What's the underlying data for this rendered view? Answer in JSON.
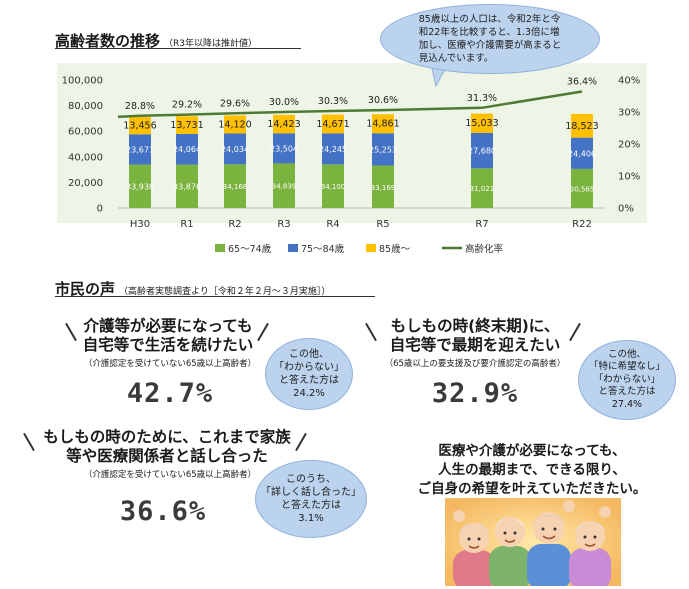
{
  "section1": {
    "title": "高齢者数の推移",
    "subtitle": "（R3年以降は推計値）"
  },
  "top_bubble": {
    "line1": "85歳以上の人口は、令和2年と令",
    "line2": "和22年を比較すると、1.3倍に増",
    "line3": "加し、医療や介護需要が高まると",
    "line4": "見込んでいます。"
  },
  "chart_data": {
    "type": "bar",
    "stacked": true,
    "categories": [
      "H30",
      "R1",
      "R2",
      "R3",
      "R4",
      "R5",
      "R7",
      "R22"
    ],
    "series": [
      {
        "name": "65～74歳",
        "color": "#7ab33e",
        "values": [
          33938,
          33876,
          34168,
          34839,
          34100,
          33169,
          31021,
          30565
        ]
      },
      {
        "name": "75～84歳",
        "color": "#4472c4",
        "values": [
          23671,
          24064,
          24034,
          23504,
          24245,
          25253,
          27680,
          24406
        ]
      },
      {
        "name": "85歳～",
        "color": "#ffc000",
        "values": [
          13456,
          13731,
          14120,
          14423,
          14671,
          14861,
          15033,
          18523
        ]
      }
    ],
    "line": {
      "name": "高齢化率",
      "color": "#4f7a34",
      "values": [
        28.8,
        29.2,
        29.6,
        30.0,
        30.3,
        30.6,
        31.3,
        36.4
      ],
      "labels": [
        "28.8%",
        "29.2%",
        "29.6%",
        "30.0%",
        "30.3%",
        "30.6%",
        "31.3%",
        "36.4%"
      ]
    },
    "y_left": {
      "min": 0,
      "max": 100000,
      "ticks": [
        "0",
        "20,000",
        "40,000",
        "60,000",
        "80,000",
        "100,000"
      ]
    },
    "y_right": {
      "min": 0,
      "max": 40,
      "ticks": [
        "0%",
        "10%",
        "20%",
        "30%",
        "40%"
      ]
    },
    "value_labels": {
      "s0": [
        "33,938",
        "33,876",
        "34,168",
        "34,839",
        "34,100",
        "33,169",
        "31,021",
        "30,565"
      ],
      "s1": [
        "23,671",
        "24,064",
        "24,034",
        "23,504",
        "24,245",
        "25,253",
        "27,680",
        "24,406"
      ],
      "s2": [
        "13,456",
        "13,731",
        "14,120",
        "14,423",
        "14,671",
        "14,861",
        "15,033",
        "18,523"
      ]
    },
    "legend_position": "bottom",
    "grid": false
  },
  "section2": {
    "title": "市民の声",
    "subtitle": "（高齢者実態調査より［令和２年２月～３月実施］）"
  },
  "q1": {
    "line1": "介護等が必要になっても",
    "line2": "自宅等で生活を続けたい",
    "note": "（介護認定を受けていない65歳以上高齢者）",
    "pct": "42.7%",
    "bubble": [
      "この他、",
      "「わからない」",
      "と答えた方は",
      "24.2%"
    ]
  },
  "q2": {
    "line1": "もしもの時(終末期)に、",
    "line2": "自宅等で最期を迎えたい",
    "note": "（65歳以上の要支援及び要介護認定の高齢者）",
    "pct": "32.9%",
    "bubble": [
      "この他、",
      "「特に希望なし」",
      "「わからない」",
      "と答えた方は",
      "27.4%"
    ]
  },
  "q3": {
    "line1": "もしもの時のために、これまで家族",
    "line2": "等や医療関係者と話し合った",
    "note": "（介護認定を受けていない65歳以上高齢者）",
    "pct": "36.6%",
    "bubble": [
      "このうち、",
      "「詳しく話し合った」",
      "と答えた方は",
      "3.1%"
    ]
  },
  "message": {
    "line1": "医療や介護が必要になっても、",
    "line2": "人生の最期まで、できる限り、",
    "line3": "ご自身の希望を叶えていただきたい。"
  }
}
